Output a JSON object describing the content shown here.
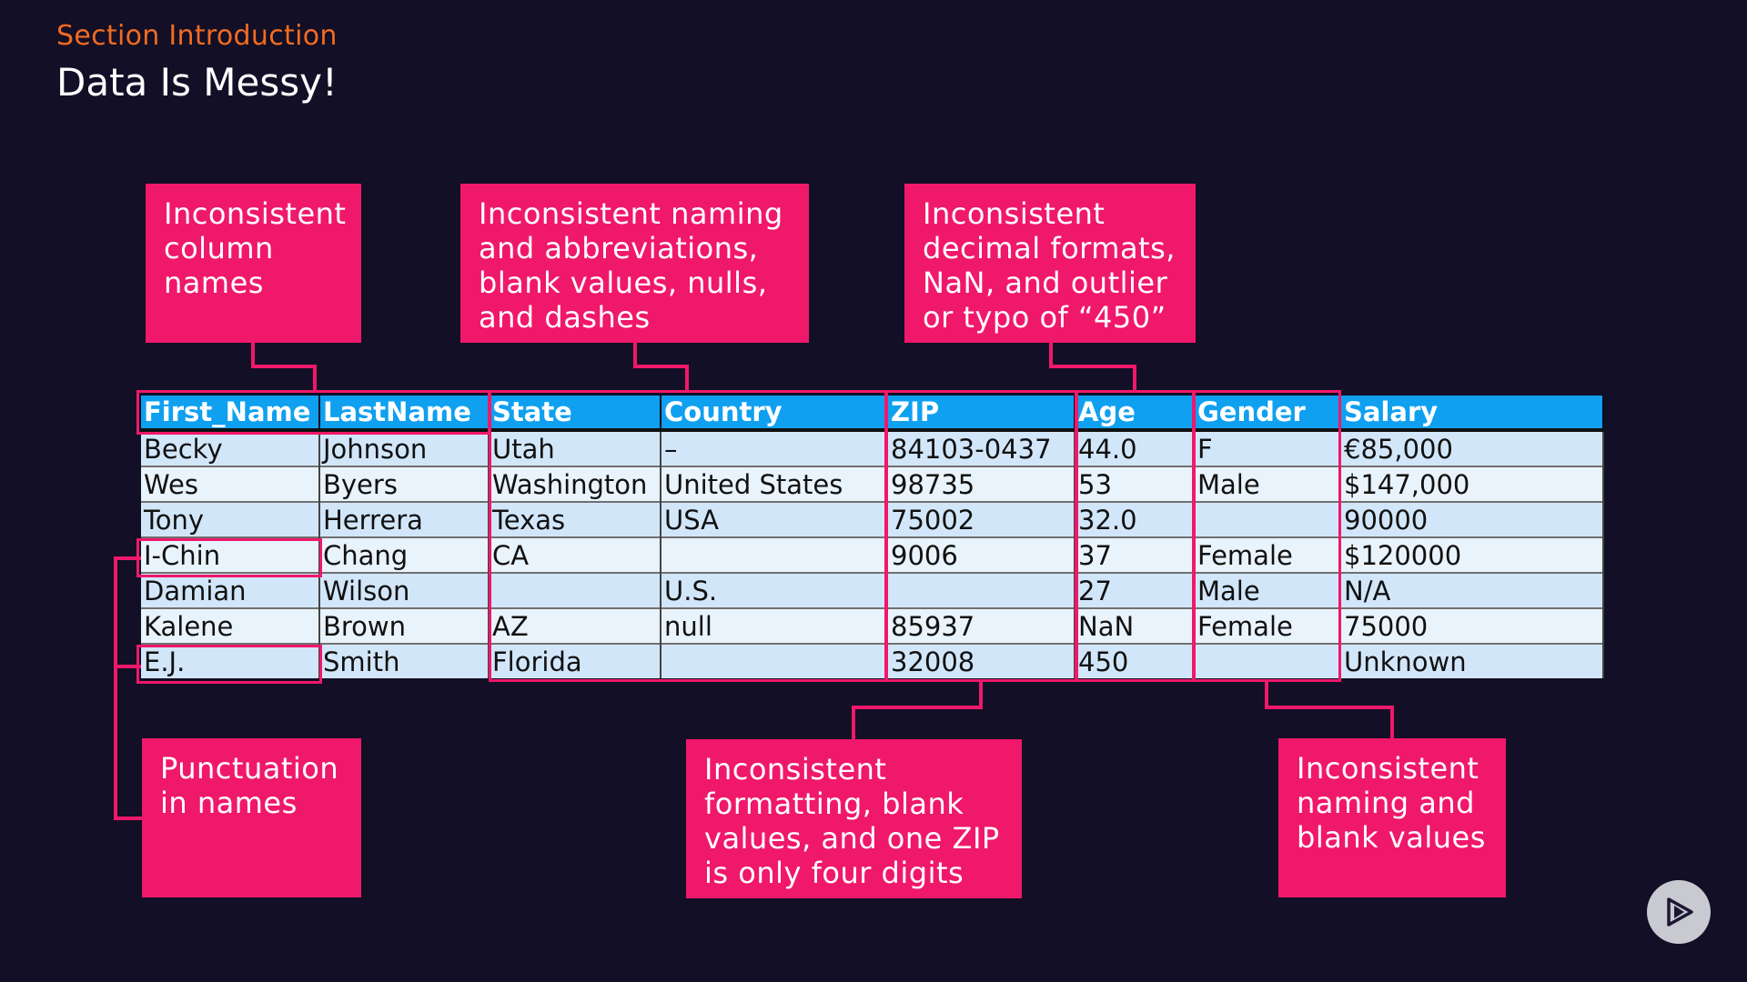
{
  "header": {
    "section": "Section Introduction",
    "title": "Data Is Messy!"
  },
  "callouts": {
    "column_names": "Inconsistent column names",
    "naming_abbrev": "Inconsistent naming and abbreviations, blank values, nulls, and dashes",
    "decimal": "Inconsistent decimal formats, NaN, and outlier or typo of “450”",
    "punctuation": "Punctuation in names",
    "zip_formatting": "Inconsistent formatting, blank values, and one ZIP is only four digits",
    "gender": "Inconsistent naming and blank values"
  },
  "table": {
    "columns": [
      "First_Name",
      "LastName",
      "State",
      "Country",
      "ZIP",
      "Age",
      "Gender",
      "Salary"
    ],
    "rows": [
      [
        "Becky",
        "Johnson",
        "Utah",
        "–",
        "84103-0437",
        "44.0",
        "F",
        "€85,000"
      ],
      [
        "Wes",
        "Byers",
        "Washington",
        "United States",
        "98735",
        "53",
        "Male",
        "$147,000"
      ],
      [
        "Tony",
        "Herrera",
        "Texas",
        "USA",
        "75002",
        "32.0",
        "",
        "90000"
      ],
      [
        "I-Chin",
        "Chang",
        "CA",
        "",
        "9006",
        "37",
        "Female",
        "$120000"
      ],
      [
        "Damian",
        "Wilson",
        "",
        "U.S.",
        "",
        "27",
        "Male",
        "N/A"
      ],
      [
        "Kalene",
        "Brown",
        "AZ",
        "null",
        "85937",
        "NaN",
        "Female",
        "75000"
      ],
      [
        "E.J.",
        "Smith",
        "Florida",
        "",
        "32008",
        "450",
        "",
        "Unknown"
      ]
    ]
  },
  "colors": {
    "background": "#120f26",
    "accent_pink": "#f0186a",
    "section_orange": "#f26b21",
    "header_blue": "#0fa0f0"
  },
  "icons": {
    "play": "play-icon"
  }
}
